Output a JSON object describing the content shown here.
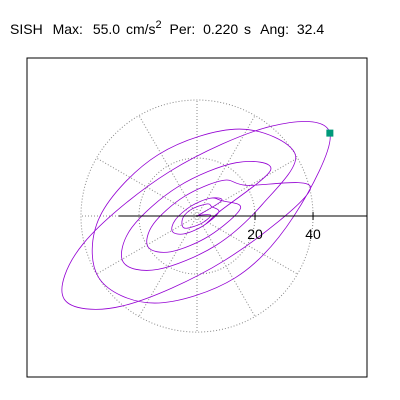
{
  "chart_data": {
    "type": "line",
    "header": {
      "station": "SISH",
      "max_label": "Max:",
      "max": "55.0",
      "max_unit": "cm/s",
      "max_unit_exp": "2",
      "per_label": "Per:",
      "per": "0.220",
      "per_unit": "s",
      "ang_label": "Ang:",
      "ang": "32.4"
    },
    "xlim": [
      -58.6,
      58.6
    ],
    "ylim": [
      -55.5,
      54.5
    ],
    "xticks": [
      20,
      40
    ],
    "color": "#9400d3",
    "marker": {
      "x": 45.8,
      "y": 28.6,
      "color": "#00997a"
    },
    "x": [
      0,
      8.5,
      4.5,
      -2.12,
      -7.5,
      -8.5,
      -4.5,
      2.12,
      7.5,
      25.4,
      13.5,
      -6.4,
      -22.5,
      -25.4,
      -13.5,
      6.4,
      22.5,
      33.9,
      14.6,
      -13.3,
      -33.4,
      -33.9,
      -14.6,
      13.3,
      33.4,
      45.8,
      25.7,
      -9.5,
      -39.1,
      -45.8,
      -25.7,
      9.5,
      39.1,
      16.9,
      9,
      -4.3,
      -15,
      -16.9,
      -9,
      4.3,
      15,
      8.5,
      4.5,
      -2.12,
      -7.5,
      -8.5,
      -4.5,
      2.12,
      7.5,
      5.1,
      3.6,
      -1.6,
      -4.7,
      -5.1,
      -3.6,
      1.6,
      4.7,
      0.5
    ],
    "y": [
      0,
      5.3,
      6.15,
      3.39,
      -1.35,
      -5.3,
      -6.15,
      -3.39,
      1.35,
      15.9,
      18.4,
      10.2,
      -4.0,
      -15.9,
      -18.4,
      -10.2,
      4.0,
      21.2,
      30.0,
      21.2,
      0,
      -21.2,
      -30.0,
      -21.2,
      0,
      28.6,
      31.0,
      15.3,
      -9.4,
      -28.6,
      -31.0,
      -15.3,
      9.4,
      10.6,
      12.3,
      6.8,
      -2.7,
      -10.6,
      -12.3,
      -6.8,
      2.7,
      5.3,
      6.15,
      3.39,
      -1.35,
      -5.3,
      -6.15,
      -3.39,
      1.35,
      3.2,
      4.2,
      2.5,
      -0.3,
      -3.2,
      -4.2,
      -2.5,
      0.3,
      0.3
    ]
  }
}
